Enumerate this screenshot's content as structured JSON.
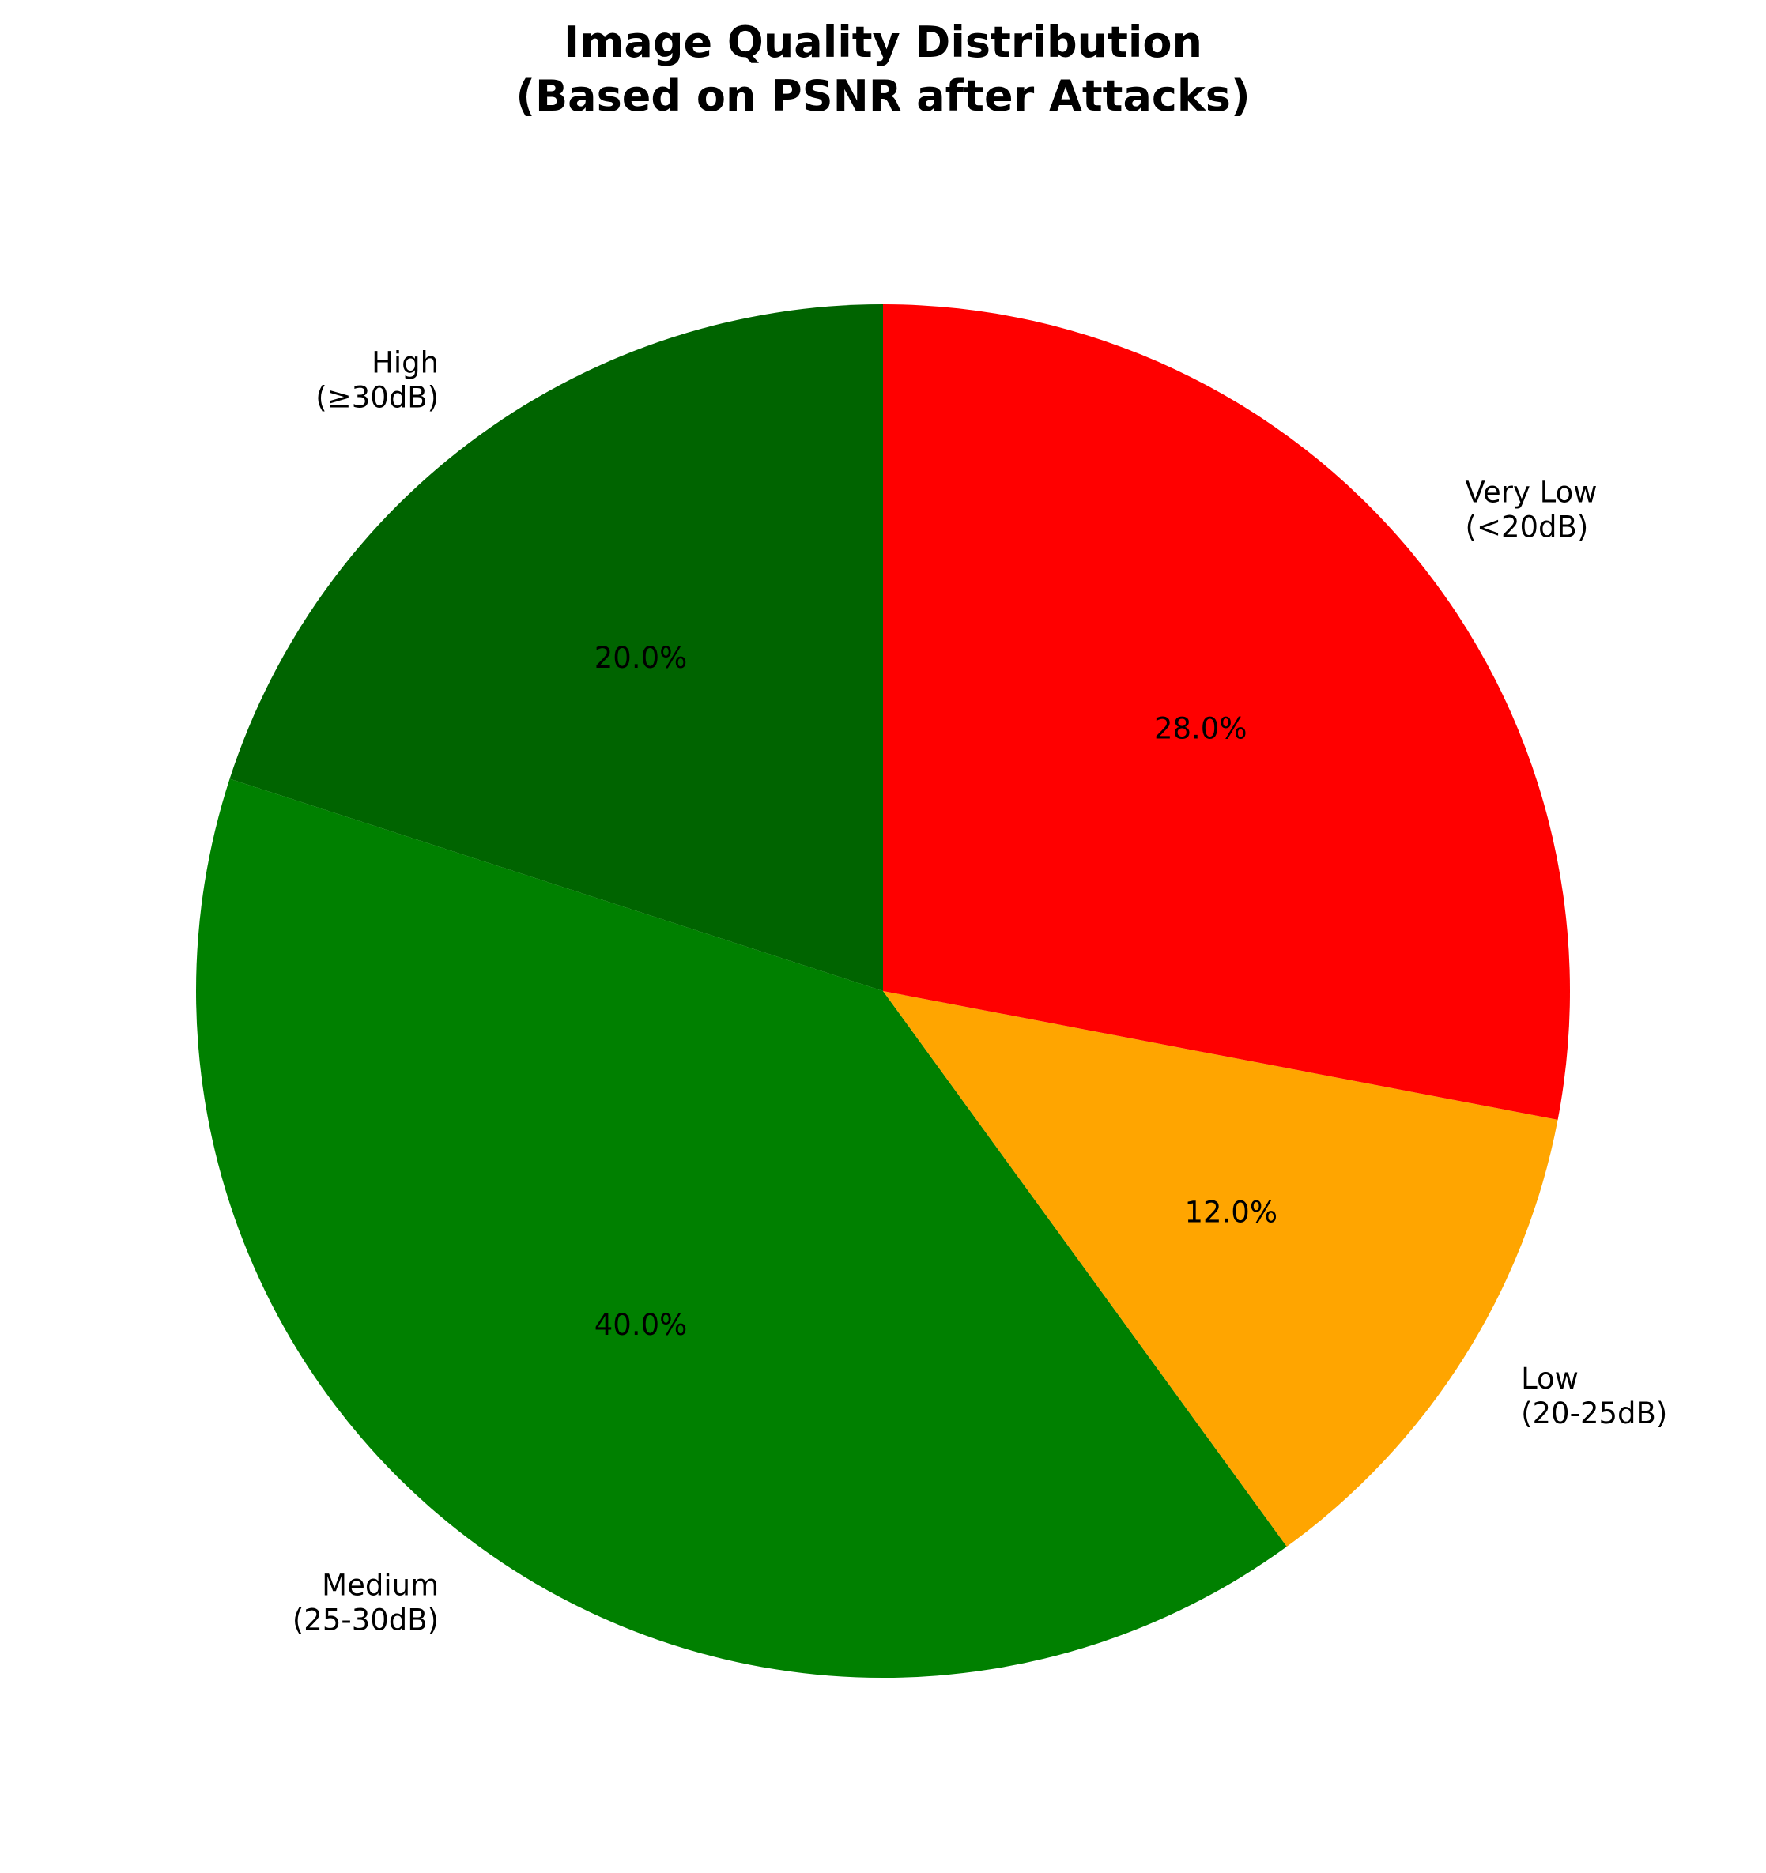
{
  "chart_data": {
    "type": "pie",
    "title": [
      "Image Quality Distribution",
      "(Based on PSNR after Attacks)"
    ],
    "start_angle_deg": 90,
    "direction": "counterclockwise",
    "slices": [
      {
        "label_lines": [
          "High",
          "(≥30dB)"
        ],
        "value": 20.0,
        "pct_label": "20.0%",
        "color": "#006400"
      },
      {
        "label_lines": [
          "Medium",
          "(25-30dB)"
        ],
        "value": 40.0,
        "pct_label": "40.0%",
        "color": "#008000"
      },
      {
        "label_lines": [
          "Low",
          "(20-25dB)"
        ],
        "value": 12.0,
        "pct_label": "12.0%",
        "color": "#FFA500"
      },
      {
        "label_lines": [
          "Very Low",
          "(<20dB)"
        ],
        "value": 28.0,
        "pct_label": "28.0%",
        "color": "#FF0000"
      }
    ]
  }
}
